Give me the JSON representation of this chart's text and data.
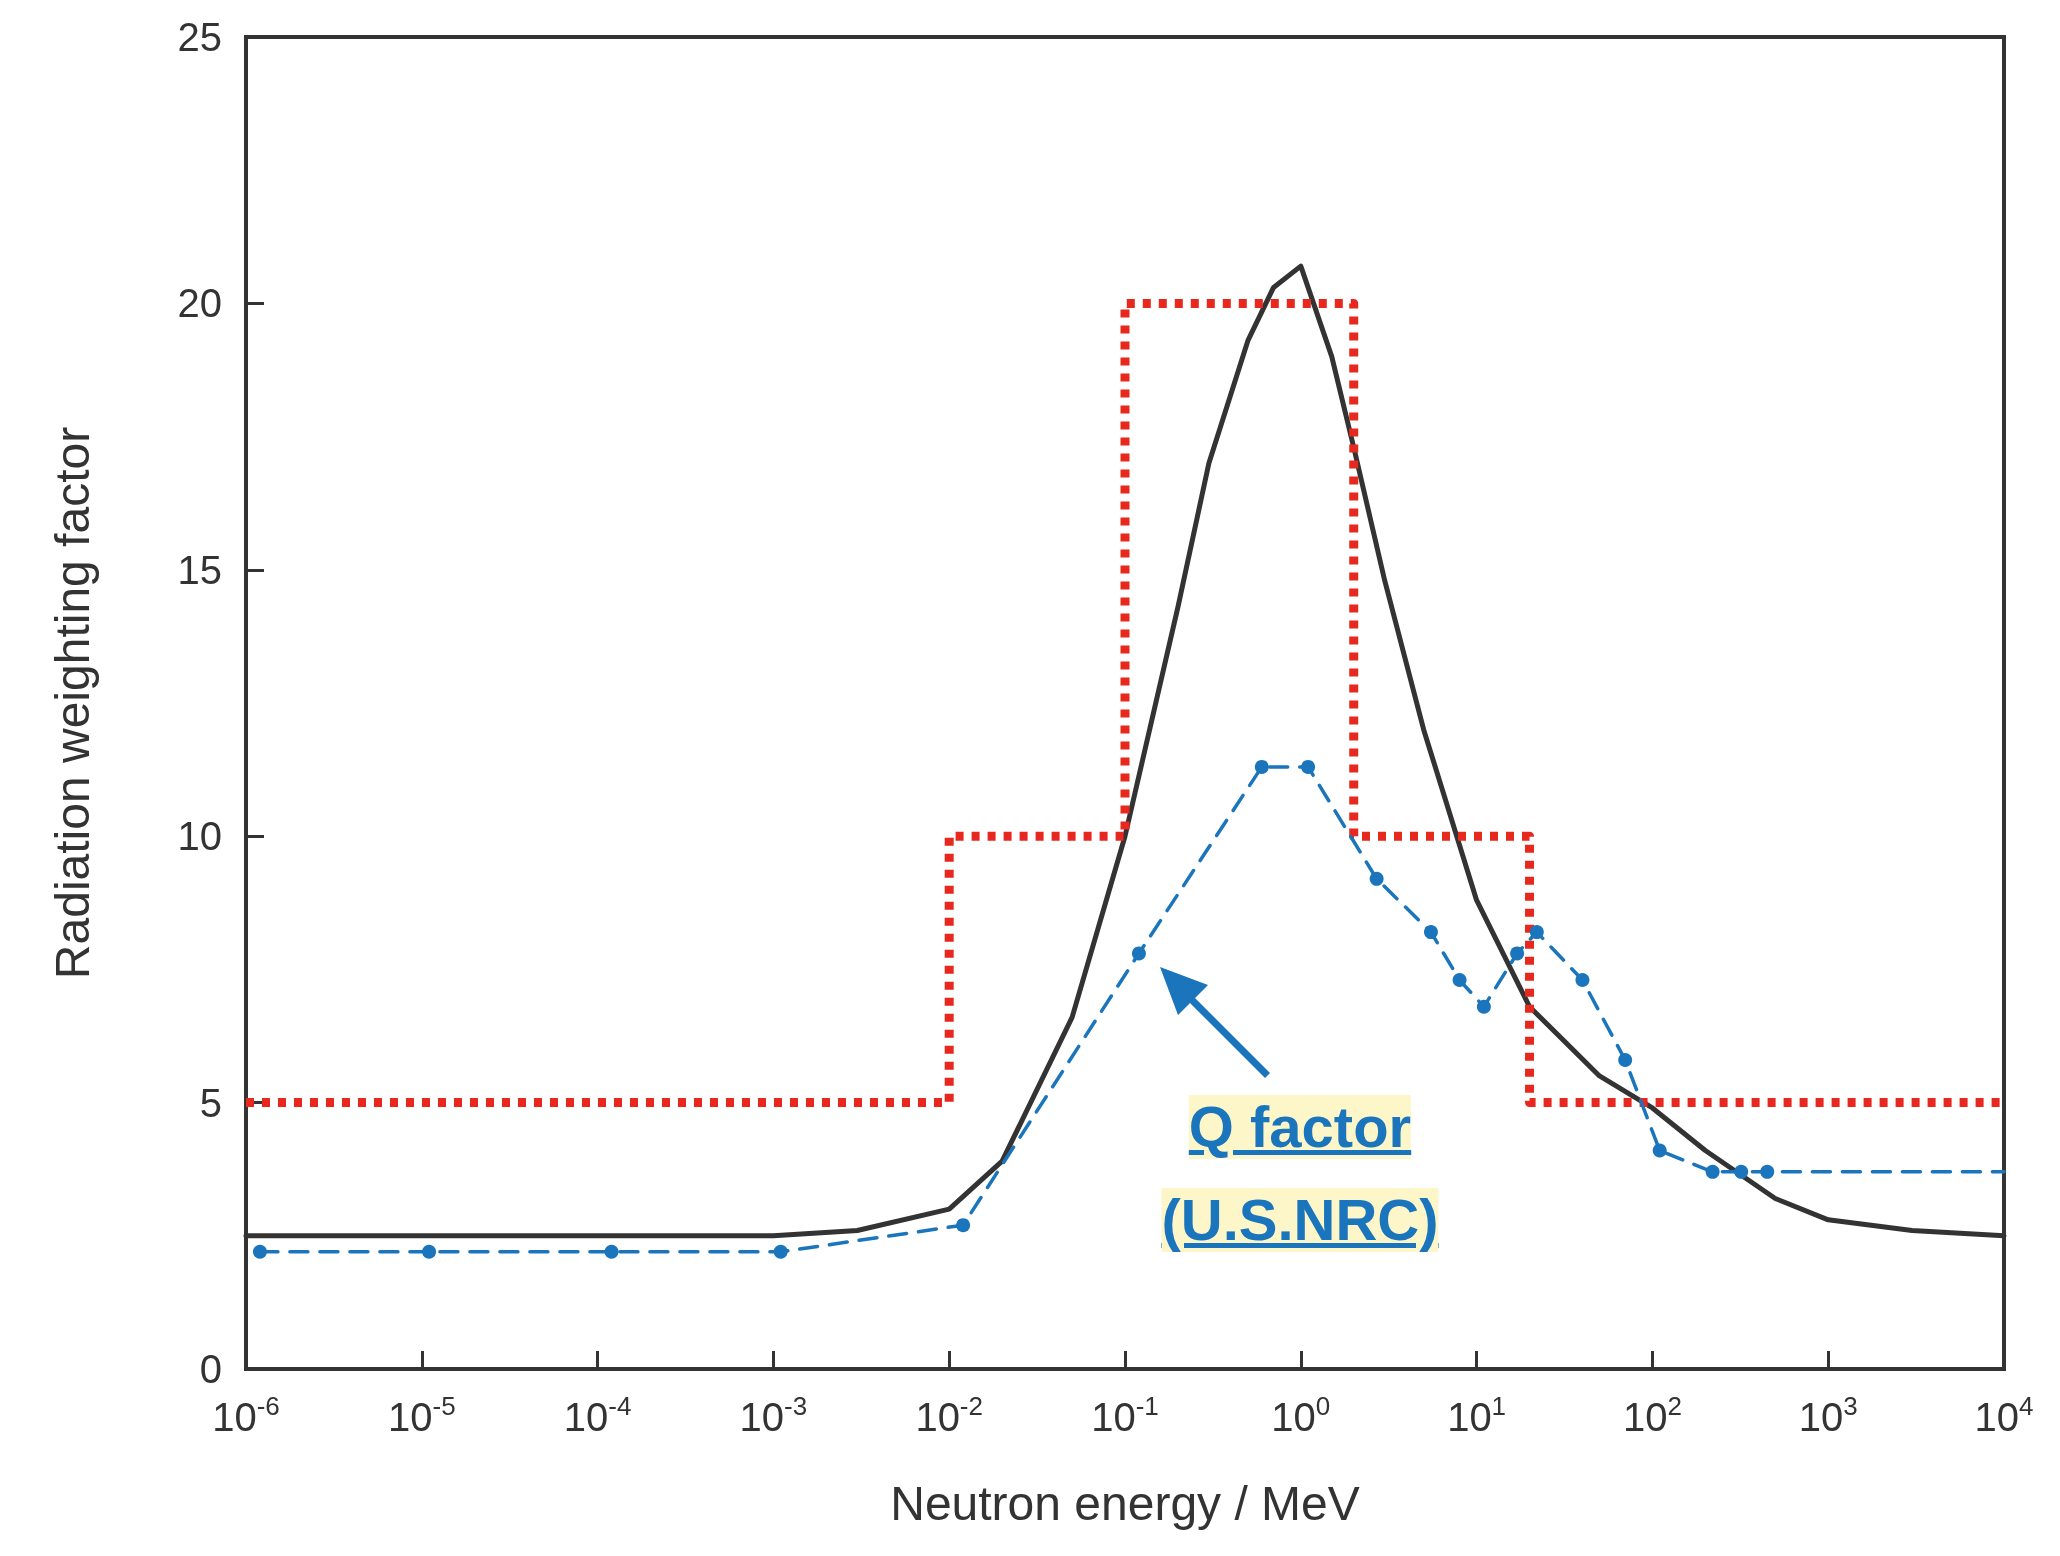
{
  "chart_data": {
    "type": "line",
    "xlabel": "Neutron energy / MeV",
    "ylabel": "Radiation weighting factor",
    "log": "x",
    "grid": false,
    "xlim": [
      1e-06,
      10000
    ],
    "ylim": [
      0,
      25
    ],
    "xticks": [
      {
        "value": 1e-06,
        "label": "10$^{-6}$"
      },
      {
        "value": 1e-05,
        "label": "10$^{-5}$"
      },
      {
        "value": 0.0001,
        "label": "10$^{-4}$"
      },
      {
        "value": 0.001,
        "label": "10$^{-3}$"
      },
      {
        "value": 0.01,
        "label": "10$^{-2}$"
      },
      {
        "value": 0.1,
        "label": "10$^{-1}$"
      },
      {
        "value": 1,
        "label": "10$^{0}$"
      },
      {
        "value": 10,
        "label": "10$^{1}$"
      },
      {
        "value": 100,
        "label": "10$^{2}$"
      },
      {
        "value": 1000,
        "label": "10$^{3}$"
      },
      {
        "value": 10000,
        "label": "10$^{4}$"
      }
    ],
    "yticks": [
      0,
      5,
      10,
      15,
      20,
      25
    ],
    "annotations": [
      "Q factor",
      "(U.S.NRC)"
    ],
    "series": [
      {
        "color": "#333333",
        "line_style": "solid",
        "marker": "none",
        "x": [
          1e-06,
          0.0001,
          0.001,
          0.003,
          0.01,
          0.02,
          0.05,
          0.1,
          0.2,
          0.3,
          0.5,
          0.7,
          1,
          1.5,
          2,
          3,
          5,
          10,
          20,
          50,
          100,
          200,
          500,
          1000,
          3000,
          10000
        ],
        "values": [
          2.5,
          2.5,
          2.5,
          2.6,
          3.0,
          3.9,
          6.6,
          10.0,
          14.3,
          17.0,
          19.3,
          20.3,
          20.7,
          19.0,
          17.3,
          14.8,
          12.0,
          8.8,
          6.8,
          5.5,
          4.9,
          4.1,
          3.2,
          2.8,
          2.6,
          2.5
        ]
      },
      {
        "type": "step",
        "color": "#e8281e",
        "line_style": "dotted",
        "marker": "none",
        "x": [
          1e-06,
          0.01,
          0.1,
          2,
          20,
          10000
        ],
        "values": [
          5,
          10,
          20,
          10,
          5,
          5
        ]
      },
      {
        "color": "#1a75bc",
        "line_style": "dashed",
        "marker": "circle",
        "x": [
          1.2e-06,
          1.1e-05,
          0.00012,
          0.0011,
          0.012,
          0.12,
          0.6,
          1.1,
          2.7,
          5.5,
          8,
          11,
          17,
          22,
          40,
          70,
          110,
          220,
          320,
          450,
          10000
        ],
        "values": [
          2.2,
          2.2,
          2.2,
          2.2,
          2.7,
          7.8,
          11.3,
          11.3,
          9.2,
          8.2,
          7.3,
          6.8,
          7.8,
          8.2,
          7.3,
          5.8,
          4.1,
          3.7,
          3.7,
          3.7,
          3.7
        ]
      }
    ]
  }
}
